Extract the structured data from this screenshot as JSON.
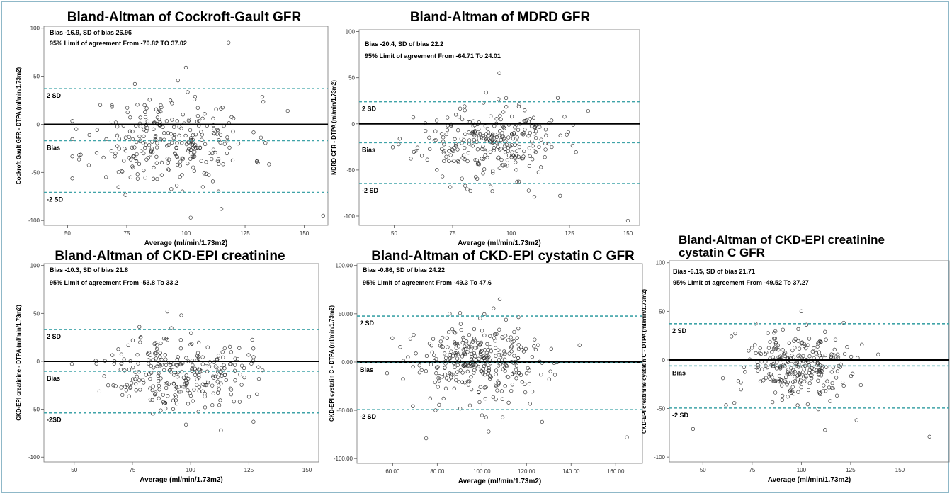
{
  "chart_data": [
    {
      "type": "scatter",
      "title": "Bland-Altman of Cockroft-Gault GFR",
      "xlabel": "Average (ml/min/1.73m2)",
      "ylabel": "Cockroft Gault GFR - DTPA (ml/min/1.73m2)",
      "xlim": [
        40,
        160
      ],
      "ylim": [
        -105,
        102
      ],
      "xticks": [
        "50",
        "75",
        "100",
        "125",
        "150"
      ],
      "yticks": [
        "100",
        "50",
        "0",
        "-50",
        "-100"
      ],
      "annotations": [
        "Bias -16.9, SD of bias 26.96",
        "95% Limit of agreement From -70.82 TO 37.02"
      ],
      "lines": {
        "bias": -16.9,
        "upper": 37.02,
        "lower": -70.82
      },
      "line_labels": {
        "upper": "2 SD",
        "bias": "Bias",
        "lower": "-2 SD"
      },
      "sample": {
        "n": 280,
        "x_mean": 93,
        "x_sd": 17,
        "mean": -16.9,
        "sd": 26.96,
        "seed": 11
      },
      "extra_points": [
        [
          118,
          85
        ],
        [
          100,
          59
        ],
        [
          143,
          14
        ],
        [
          158,
          -95
        ],
        [
          102,
          -97
        ],
        [
          115,
          -88
        ]
      ]
    },
    {
      "type": "scatter",
      "title": "Bland-Altman of  MDRD GFR",
      "xlabel": "Average (ml/min/1.73m2)",
      "ylabel": "MDRD GFR - DTPA (ml/min/1.73m2)",
      "xlim": [
        35,
        155
      ],
      "ylim": [
        -110,
        102
      ],
      "xticks": [
        "50",
        "75",
        "100",
        "125",
        "150"
      ],
      "yticks": [
        "100",
        "50",
        "0",
        "-50",
        "-100"
      ],
      "annotations": [
        "Bias -20.4, SD of bias 22.2",
        "95% Limit of agreement From -64.71 To 24.01"
      ],
      "lines": {
        "bias": -20.4,
        "upper": 24.01,
        "lower": -64.71
      },
      "line_labels": {
        "upper": "2 SD",
        "bias": "Bias",
        "lower": "-2 SD"
      },
      "sample": {
        "n": 280,
        "x_mean": 90,
        "x_sd": 15,
        "mean": -20.4,
        "sd": 22.2,
        "seed": 23
      },
      "extra_points": [
        [
          95,
          55
        ],
        [
          120,
          28
        ],
        [
          133,
          14
        ],
        [
          150,
          -105
        ],
        [
          92,
          -73
        ],
        [
          110,
          -79
        ],
        [
          121,
          -78
        ]
      ]
    },
    {
      "type": "scatter",
      "title": "Bland-Altman of CKD-EPI creatinine",
      "xlabel": "Average (ml/min/1.73m2)",
      "ylabel": "CKD-EPI creatinine - DTPA (ml/min/1.73m2)",
      "xlim": [
        37,
        155
      ],
      "ylim": [
        -105,
        102
      ],
      "xticks": [
        "50",
        "75",
        "100",
        "125",
        "150"
      ],
      "yticks": [
        "100",
        "50",
        "0",
        "-50",
        "-100"
      ],
      "annotations": [
        "Bias -10.3, SD of bias 21.8",
        "95% Limit of agreement From -53.8 To 33.2"
      ],
      "lines": {
        "bias": -10.3,
        "upper": 33.2,
        "lower": -53.8
      },
      "line_labels": {
        "upper": "2 SD",
        "bias": "Bias",
        "lower": "-2SD"
      },
      "sample": {
        "n": 280,
        "x_mean": 95,
        "x_sd": 15,
        "mean": -10.3,
        "sd": 21.8,
        "seed": 37
      },
      "extra_points": [
        [
          90,
          52
        ],
        [
          96,
          48
        ],
        [
          78,
          36
        ],
        [
          98,
          -66
        ],
        [
          113,
          -72
        ],
        [
          127,
          -63
        ]
      ]
    },
    {
      "type": "scatter",
      "title": "Bland-Altman of CKD-EPI cystatin C GFR",
      "xlabel": "Average (ml/min/1.73m2)",
      "ylabel": "CKD-EPI cystatin C - DTPA (ml/min/1.73m2)",
      "xlim": [
        44,
        172
      ],
      "ylim": [
        -105,
        102
      ],
      "xticks": [
        "60.00",
        "80.00",
        "100.00",
        "120.00",
        "140.00",
        "160.00"
      ],
      "yticks": [
        "100.00",
        "50.00",
        "0.00",
        "-50.00",
        "-100.00"
      ],
      "annotations": [
        "Bias -0.86, SD of bias 24.22",
        "95% Limit of agreement From -49.3 To 47.6"
      ],
      "lines": {
        "bias": -0.86,
        "upper": 47.6,
        "lower": -49.3
      },
      "line_labels": {
        "upper": "2 SD",
        "bias": "Bias",
        "lower": "-2 SD"
      },
      "sample": {
        "n": 320,
        "x_mean": 100,
        "x_sd": 16,
        "mean": -0.86,
        "sd": 24.22,
        "seed": 53
      },
      "extra_points": [
        [
          75,
          -79
        ],
        [
          165,
          -78
        ],
        [
          108,
          65
        ],
        [
          103,
          -72
        ],
        [
          127,
          -62
        ]
      ]
    },
    {
      "type": "scatter",
      "title": "Bland-Altman of  CKD-EPI creatinine cystatin C GFR",
      "xlabel": "Average (ml/min/1.73m2)",
      "ylabel": "CKD-EPI creatinine cystatin C - DTPA (ml/min/1.73m2)",
      "xlim": [
        33,
        175
      ],
      "ylim": [
        -105,
        102
      ],
      "xticks": [
        "50",
        "75",
        "100",
        "125",
        "150"
      ],
      "yticks": [
        "100",
        "50",
        "0",
        "-50",
        "-100"
      ],
      "annotations": [
        "Bias -6.15, SD of bias 21.71",
        "95% Limit of agreement From -49.52 To 37.27"
      ],
      "lines": {
        "bias": -6.15,
        "upper": 37.27,
        "lower": -49.52
      },
      "line_labels": {
        "upper": "2 SD",
        "bias": "Bias",
        "lower": "-2 SD"
      },
      "sample": {
        "n": 280,
        "x_mean": 98,
        "x_sd": 15,
        "mean": -6.15,
        "sd": 21.71,
        "seed": 71
      },
      "extra_points": [
        [
          45,
          -71
        ],
        [
          165,
          -79
        ],
        [
          100,
          50
        ],
        [
          112,
          -72
        ],
        [
          128,
          -62
        ]
      ]
    }
  ]
}
